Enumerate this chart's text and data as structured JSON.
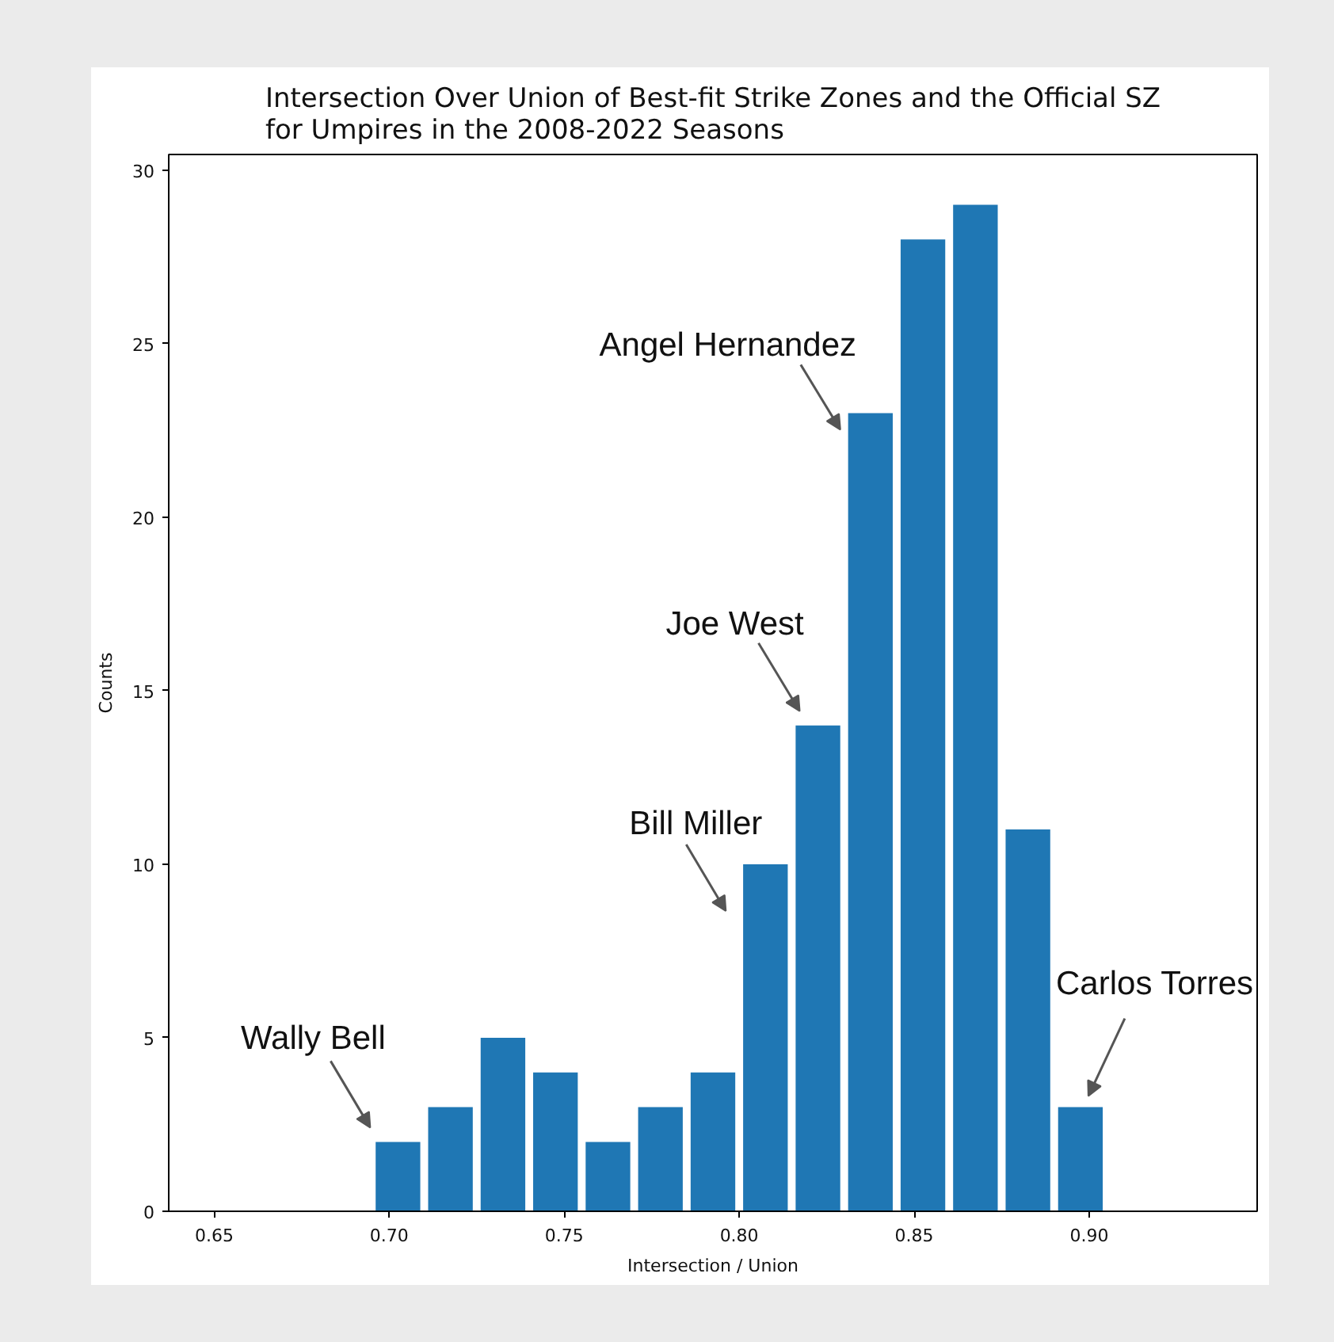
{
  "chart_data": {
    "type": "histogram",
    "title": "Intersection Over Union of Best-fit Strike Zones and the Official SZ\nfor Umpires in the 2008-2022 Seasons",
    "xlabel": "Intersection / Union",
    "ylabel": "Counts",
    "bins": [
      0.695,
      0.71,
      0.725,
      0.74,
      0.755,
      0.77,
      0.785,
      0.8,
      0.815,
      0.83,
      0.845,
      0.86,
      0.875,
      0.89,
      0.905
    ],
    "values": [
      2,
      3,
      5,
      4,
      2,
      3,
      4,
      10,
      14,
      23,
      28,
      29,
      11,
      3
    ],
    "color": "#1f77b4",
    "xlim": [
      0.637,
      0.948
    ],
    "ylim": [
      0,
      30.45
    ],
    "xticks": [
      {
        "value": 0.65,
        "label": "0.65"
      },
      {
        "value": 0.7,
        "label": "0.70"
      },
      {
        "value": 0.75,
        "label": "0.75"
      },
      {
        "value": 0.8,
        "label": "0.80"
      },
      {
        "value": 0.85,
        "label": "0.85"
      },
      {
        "value": 0.9,
        "label": "0.90"
      }
    ],
    "yticks": [
      0,
      5,
      10,
      15,
      20,
      25,
      30
    ],
    "annotations": [
      {
        "text": "Wally Bell",
        "x": 0.7025,
        "y": 2
      },
      {
        "text": "Bill Miller",
        "x": 0.8075,
        "y": 10
      },
      {
        "text": "Joe West",
        "x": 0.8225,
        "y": 14
      },
      {
        "text": "Angel Hernandez",
        "x": 0.8375,
        "y": 23
      },
      {
        "text": "Carlos Torres",
        "x": 0.8975,
        "y": 3
      }
    ]
  }
}
